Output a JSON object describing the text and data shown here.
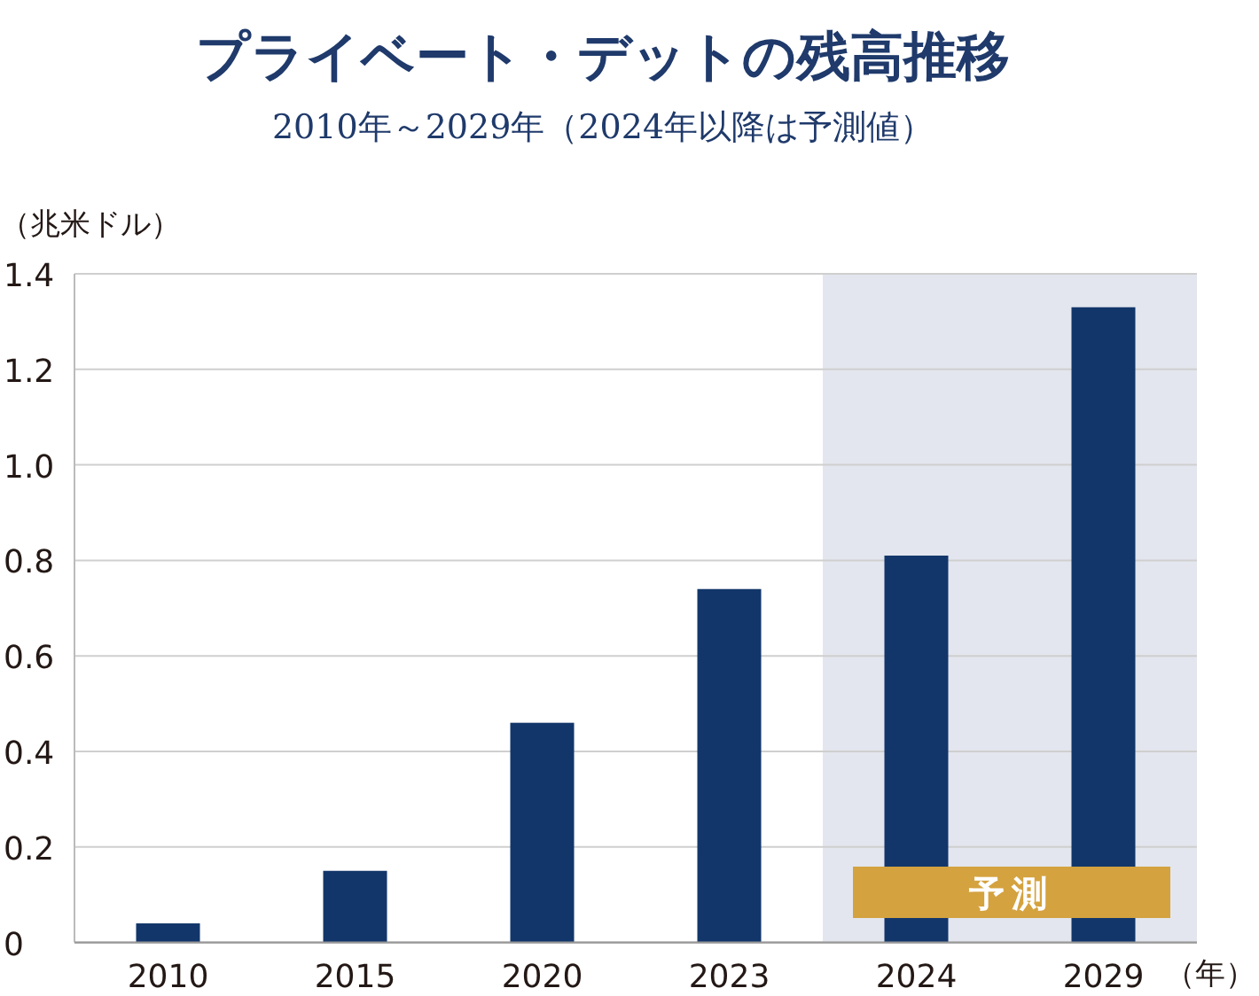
{
  "chart_data": {
    "type": "bar",
    "title": "プライベート・デットの残高推移",
    "subtitle": "2010年～2029年（2024年以降は予測値）",
    "ylabel": "（兆米ドル）",
    "xlabel": "（年）",
    "categories": [
      "2010",
      "2015",
      "2020",
      "2023",
      "2024",
      "2029"
    ],
    "values": [
      0.04,
      0.15,
      0.46,
      0.74,
      0.81,
      1.33
    ],
    "color": "#12366a",
    "ylim": [
      0,
      1.4
    ],
    "yticks": [
      0,
      0.2,
      0.4,
      0.6,
      0.8,
      {
        "value": 1.0,
        "label": "1.0"
      },
      1.2,
      1.4
    ],
    "grid": "y",
    "bands": [
      {
        "axis": "x",
        "from": "2024",
        "to": "2029",
        "label": "予測",
        "color": "#e3e6ee"
      }
    ]
  }
}
